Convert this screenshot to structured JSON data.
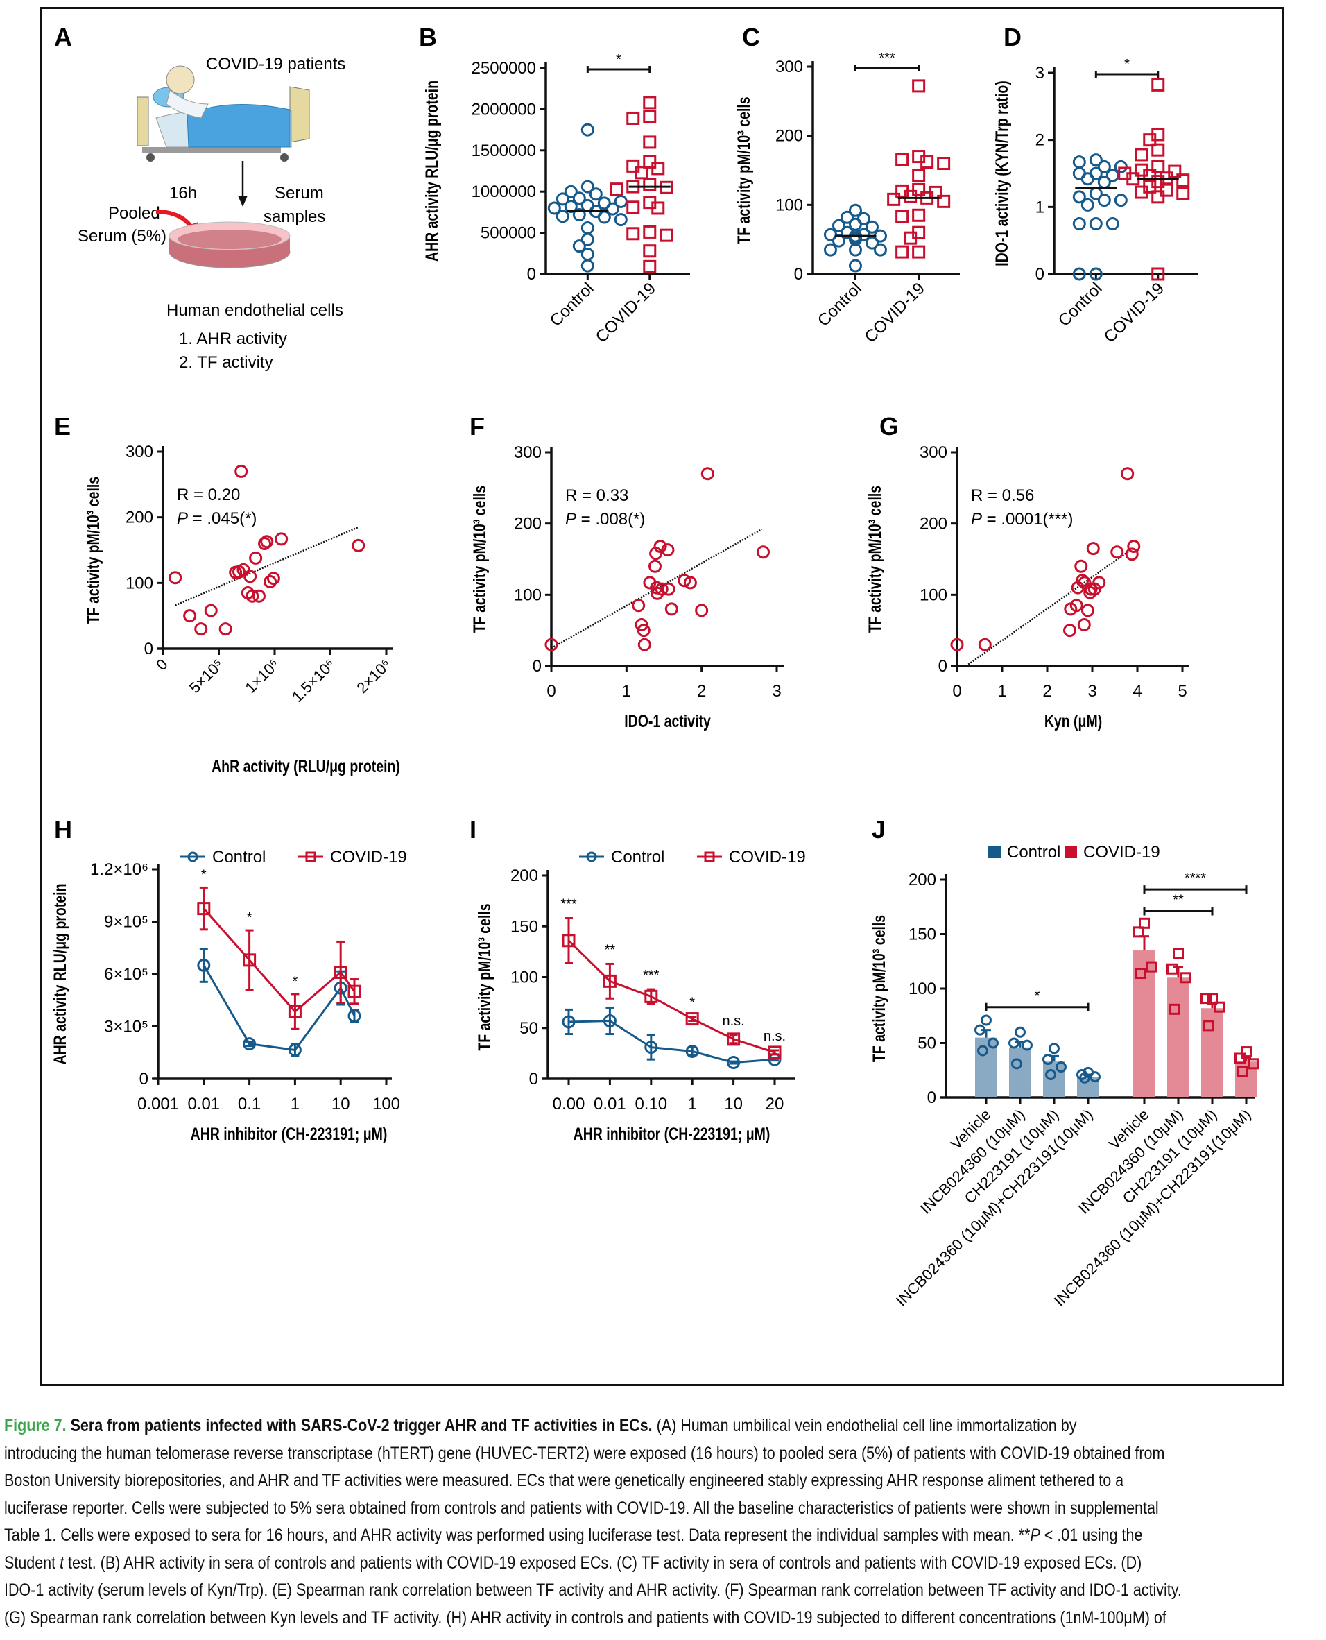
{
  "figure": {
    "label": "Figure 7.",
    "title": "Sera from patients infected with SARS-CoV-2 trigger AHR and TF activities in ECs.",
    "colors": {
      "control": "#165a8c",
      "covid": "#c8102e",
      "control_bar": "#8aa9c3",
      "covid_bar": "#e38a96",
      "caption_label": "#3aa54a"
    }
  },
  "panel_a": {
    "letter": "A",
    "patients_label": "COVID-19 patients",
    "time_label": "16h",
    "serum_label_1": "Serum",
    "serum_label_2": "samples",
    "pooled_label_1": "Pooled",
    "pooled_label_2": "Serum (5%)",
    "cells_label": "Human endothelial cells",
    "readouts": [
      "1. AHR activity",
      "2. TF activity"
    ]
  },
  "chart_data": [
    {
      "panel": "B",
      "type": "scatter",
      "subtype": "dot-plot",
      "ylabel": "AHR activity RLU/μg protein",
      "categories": [
        "Control",
        "COVID-19"
      ],
      "ylim": [
        0,
        2500000
      ],
      "yticks": [
        "0",
        "500000",
        "1000000",
        "1500000",
        "2000000",
        "2500000"
      ],
      "ytick_values": [
        0,
        500000,
        1000000,
        1500000,
        2000000,
        2500000
      ],
      "significance": "*",
      "series": [
        {
          "name": "Control",
          "marker": "circle",
          "mean": 770000,
          "values": [
            1750000,
            1060000,
            1000000,
            970000,
            920000,
            910000,
            860000,
            880000,
            830000,
            820000,
            790000,
            800000,
            760000,
            720000,
            700000,
            690000,
            660000,
            560000,
            420000,
            340000,
            240000,
            100000
          ]
        },
        {
          "name": "COVID-19",
          "marker": "square",
          "mean": 1060000,
          "values": [
            2080000,
            1910000,
            1890000,
            1600000,
            1360000,
            1310000,
            1280000,
            1230000,
            1090000,
            1060000,
            1050000,
            1030000,
            870000,
            810000,
            800000,
            510000,
            490000,
            470000,
            280000,
            90000
          ]
        }
      ]
    },
    {
      "panel": "C",
      "type": "scatter",
      "subtype": "dot-plot",
      "ylabel": "TF activity pM/10³ cells",
      "categories": [
        "Control",
        "COVID-19"
      ],
      "ylim": [
        0,
        300
      ],
      "yticks": [
        "0",
        "100",
        "200",
        "300"
      ],
      "ytick_values": [
        0,
        100,
        200,
        300
      ],
      "significance": "***",
      "series": [
        {
          "name": "Control",
          "marker": "circle",
          "mean": 55,
          "values": [
            92,
            82,
            80,
            72,
            70,
            68,
            60,
            57,
            57,
            55,
            55,
            52,
            50,
            50,
            48,
            45,
            35,
            35,
            35,
            12
          ]
        },
        {
          "name": "COVID-19",
          "marker": "square",
          "mean": 110,
          "values": [
            272,
            170,
            166,
            162,
            160,
            142,
            122,
            120,
            118,
            112,
            110,
            108,
            105,
            85,
            83,
            60,
            52,
            32,
            32
          ]
        }
      ]
    },
    {
      "panel": "D",
      "type": "scatter",
      "subtype": "dot-plot",
      "ylabel": "IDO-1 activity (KYN/Trp ratio)",
      "categories": [
        "Control",
        "COVID-19"
      ],
      "ylim": [
        0,
        3
      ],
      "yticks": [
        "0",
        "1",
        "2",
        "3"
      ],
      "ytick_values": [
        0,
        1,
        2,
        3
      ],
      "significance": "*",
      "series": [
        {
          "name": "Control",
          "marker": "circle",
          "mean": 1.28,
          "values": [
            1.7,
            1.67,
            1.6,
            1.6,
            1.5,
            1.5,
            1.47,
            1.42,
            1.37,
            1.2,
            1.15,
            1.1,
            1.1,
            1.03,
            0.75,
            0.75,
            0.75,
            0.0,
            0.0
          ]
        },
        {
          "name": "COVID-19",
          "marker": "square",
          "mean": 1.42,
          "values": [
            2.82,
            2.08,
            2.0,
            1.85,
            1.78,
            1.6,
            1.55,
            1.53,
            1.5,
            1.47,
            1.43,
            1.42,
            1.4,
            1.38,
            1.3,
            1.25,
            1.22,
            1.2,
            1.15,
            0.0
          ]
        }
      ]
    },
    {
      "panel": "E",
      "type": "scatter",
      "xlabel": "AhR activity (RLU/μg protein)",
      "ylabel": "TF activity pM/10³ cells",
      "xlim": [
        0,
        2000000
      ],
      "ylim": [
        0,
        300
      ],
      "xticks": [
        "0",
        "5×10⁵",
        "1×10⁶",
        "1.5×10⁶",
        "2×10⁶"
      ],
      "xtick_values": [
        0,
        500000,
        1000000,
        1500000,
        2000000
      ],
      "yticks": [
        "0",
        "100",
        "200",
        "300"
      ],
      "ytick_values": [
        0,
        100,
        200,
        300
      ],
      "annotation": {
        "r": "R = 0.20",
        "p_prefix": "P",
        "p": " = .045(*)"
      },
      "trendline": {
        "x": [
          110000,
          1750000
        ],
        "y": [
          66,
          185
        ]
      },
      "points": [
        [
          110000,
          108
        ],
        [
          240000,
          50
        ],
        [
          340000,
          30
        ],
        [
          430000,
          58
        ],
        [
          560000,
          30
        ],
        [
          650000,
          116
        ],
        [
          680000,
          117
        ],
        [
          720000,
          120
        ],
        [
          700000,
          270
        ],
        [
          760000,
          85
        ],
        [
          780000,
          110
        ],
        [
          800000,
          80
        ],
        [
          830000,
          138
        ],
        [
          860000,
          80
        ],
        [
          910000,
          160
        ],
        [
          930000,
          163
        ],
        [
          960000,
          102
        ],
        [
          990000,
          107
        ],
        [
          1060000,
          167
        ],
        [
          1750000,
          157
        ]
      ]
    },
    {
      "panel": "F",
      "type": "scatter",
      "xlabel": "IDO-1 activity",
      "ylabel": "TF activity pM/10³ cells",
      "xlim": [
        0,
        3
      ],
      "ylim": [
        0,
        300
      ],
      "xticks": [
        "0",
        "1",
        "2",
        "3"
      ],
      "xtick_values": [
        0,
        1,
        2,
        3
      ],
      "yticks": [
        "0",
        "100",
        "200",
        "300"
      ],
      "ytick_values": [
        0,
        100,
        200,
        300
      ],
      "annotation": {
        "r": "R = 0.33",
        "p_prefix": "P",
        "p": " = .008(*)"
      },
      "trendline": {
        "x": [
          0,
          2.8
        ],
        "y": [
          25,
          192
        ]
      },
      "points": [
        [
          0,
          30
        ],
        [
          1.16,
          85
        ],
        [
          1.2,
          58
        ],
        [
          1.23,
          50
        ],
        [
          1.24,
          30
        ],
        [
          1.31,
          117
        ],
        [
          1.38,
          140
        ],
        [
          1.39,
          158
        ],
        [
          1.4,
          110
        ],
        [
          1.41,
          102
        ],
        [
          1.45,
          168
        ],
        [
          1.47,
          108
        ],
        [
          1.55,
          163
        ],
        [
          1.56,
          108
        ],
        [
          1.6,
          80
        ],
        [
          1.77,
          120
        ],
        [
          1.85,
          117
        ],
        [
          2.0,
          78
        ],
        [
          2.08,
          270
        ],
        [
          2.82,
          160
        ]
      ]
    },
    {
      "panel": "G",
      "type": "scatter",
      "xlabel": "Kyn (μM)",
      "ylabel": "TF activity pM/10³ cells",
      "xlim": [
        0,
        5
      ],
      "ylim": [
        0,
        300
      ],
      "xticks": [
        "0",
        "1",
        "2",
        "3",
        "4",
        "5"
      ],
      "xtick_values": [
        0,
        1,
        2,
        3,
        4,
        5
      ],
      "yticks": [
        "0",
        "100",
        "200",
        "300"
      ],
      "ytick_values": [
        0,
        100,
        200,
        300
      ],
      "annotation": {
        "r": "R = 0.56",
        "p_prefix": "P",
        "p": " = .0001(***)"
      },
      "trendline": {
        "x": [
          0.2,
          3.9
        ],
        "y": [
          0,
          165
        ]
      },
      "points": [
        [
          0,
          30
        ],
        [
          0.62,
          30
        ],
        [
          2.5,
          50
        ],
        [
          2.52,
          80
        ],
        [
          2.65,
          85
        ],
        [
          2.68,
          110
        ],
        [
          2.75,
          140
        ],
        [
          2.78,
          120
        ],
        [
          2.82,
          58
        ],
        [
          2.83,
          117
        ],
        [
          2.9,
          78
        ],
        [
          2.95,
          103
        ],
        [
          2.97,
          108
        ],
        [
          3.02,
          165
        ],
        [
          3.05,
          108
        ],
        [
          3.15,
          117
        ],
        [
          3.55,
          160
        ],
        [
          3.78,
          270
        ],
        [
          3.88,
          157
        ],
        [
          3.92,
          168
        ]
      ]
    },
    {
      "panel": "H",
      "type": "line",
      "xscale": "log",
      "xlabel": "AHR inhibitor (CH-223191; μM)",
      "ylabel": "AHR activity RLU/μg protein",
      "xlim": [
        0.001,
        100
      ],
      "ylim": [
        0,
        1200000
      ],
      "xticks": [
        "0.001",
        "0.01",
        "0.1",
        "1",
        "10",
        "100"
      ],
      "xtick_values": [
        0.001,
        0.01,
        0.1,
        1,
        10,
        100
      ],
      "yticks": [
        "0",
        "3×10⁵",
        "6×10⁵",
        "9×10⁵",
        "1.2×10⁶"
      ],
      "ytick_values": [
        0,
        300000,
        600000,
        900000,
        1200000
      ],
      "legend": [
        "Control",
        "COVID-19"
      ],
      "legend_position": "top",
      "x": [
        0.01,
        0.1,
        1,
        10,
        20
      ],
      "significance": [
        "*",
        "*",
        "*",
        "",
        ""
      ],
      "series": [
        {
          "name": "Control",
          "marker": "circle",
          "values": [
            650000,
            200000,
            165000,
            520000,
            360000
          ],
          "errors": [
            95000,
            12000,
            35000,
            95000,
            35000
          ]
        },
        {
          "name": "COVID-19",
          "marker": "square",
          "values": [
            975000,
            680000,
            385000,
            610000,
            500000
          ],
          "errors": [
            120000,
            170000,
            100000,
            175000,
            70000
          ]
        }
      ]
    },
    {
      "panel": "I",
      "type": "line",
      "xscale": "categorical",
      "xlabel": "AHR inhibitor (CH-223191; μM)",
      "ylabel": "TF activity pM/10³ cells",
      "ylim": [
        0,
        200
      ],
      "categories": [
        "0.00",
        "0.01",
        "0.10",
        "1",
        "10",
        "20"
      ],
      "yticks": [
        "0",
        "50",
        "100",
        "150",
        "200"
      ],
      "ytick_values": [
        0,
        50,
        100,
        150,
        200
      ],
      "legend": [
        "Control",
        "COVID-19"
      ],
      "legend_position": "top",
      "significance": [
        "***",
        "**",
        "***",
        "*",
        "n.s.",
        "n.s."
      ],
      "series": [
        {
          "name": "Control",
          "marker": "circle",
          "values": [
            56,
            57,
            31,
            27,
            16,
            19
          ],
          "errors": [
            12,
            13,
            12,
            4,
            1,
            1
          ]
        },
        {
          "name": "COVID-19",
          "marker": "square",
          "values": [
            136,
            96,
            81,
            59,
            39,
            26
          ],
          "errors": [
            22,
            17,
            7,
            2,
            4,
            2
          ]
        }
      ]
    },
    {
      "panel": "J",
      "type": "bar",
      "ylabel": "TF activity pM/10³ cells",
      "ylim": [
        0,
        200
      ],
      "yticks": [
        "0",
        "50",
        "100",
        "150",
        "200"
      ],
      "ytick_values": [
        0,
        50,
        100,
        150,
        200
      ],
      "legend": [
        "Control",
        "COVID-19"
      ],
      "legend_position": "top",
      "categories": [
        "Vehicle",
        "INCB024360 (10μM)",
        "CH223191 (10μM)",
        "INCB024360 (10μM)+CH223191(10μM)",
        "Vehicle",
        "INCB024360 (10μM)",
        "CH223191 (10μM)",
        "INCB024360 (10μM)+CH223191(10μM)"
      ],
      "groups": [
        "Control",
        "Control",
        "Control",
        "Control",
        "COVID-19",
        "COVID-19",
        "COVID-19",
        "COVID-19"
      ],
      "values": [
        55,
        46,
        33,
        19,
        135,
        110,
        82,
        33
      ],
      "errors": [
        7,
        5,
        5,
        2,
        13,
        10,
        4,
        3
      ],
      "points": [
        [
          71,
          62,
          50,
          43
        ],
        [
          60,
          50,
          48,
          31
        ],
        [
          45,
          35,
          28,
          21
        ],
        [
          23,
          21,
          19,
          18
        ],
        [
          160,
          152,
          120,
          114
        ],
        [
          132,
          118,
          110,
          81
        ],
        [
          91,
          91,
          83,
          66
        ],
        [
          42,
          36,
          31,
          24
        ]
      ],
      "comparisons": [
        {
          "from": 0,
          "to": 3,
          "label": "*",
          "y": 83
        },
        {
          "from": 4,
          "to": 6,
          "label": "**",
          "y": 171
        },
        {
          "from": 4,
          "to": 7,
          "label": "****",
          "y": 191
        }
      ]
    }
  ],
  "caption": {
    "lines": [
      {
        "segments": [
          {
            "style": "label",
            "text": "Figure 7. "
          },
          {
            "style": "title",
            "text": "Sera from patients infected with SARS-CoV-2 trigger AHR and TF activities in ECs."
          },
          {
            "style": "normal",
            "text": " (A) Human umbilical vein endothelial cell line immortalization by"
          }
        ]
      },
      {
        "segments": [
          {
            "style": "normal",
            "text": "introducing the human telomerase reverse transcriptase (hTERT) gene (HUVEC-TERT2) were exposed (16 hours) to pooled sera (5%) of patients with COVID-19 obtained from"
          }
        ]
      },
      {
        "segments": [
          {
            "style": "normal",
            "text": "Boston University biorepositories, and AHR and TF activities were measured. ECs that were genetically engineered stably expressing AHR response aliment tethered to a"
          }
        ]
      },
      {
        "segments": [
          {
            "style": "normal",
            "text": "luciferase reporter. Cells were subjected to 5% sera obtained from controls and patients with COVID-19. All the baseline characteristics of patients were shown in supplemental"
          }
        ]
      },
      {
        "segments": [
          {
            "style": "normal",
            "text": "Table 1. Cells were exposed to sera for 16 hours, and AHR activity was performed using luciferase test. Data represent the individual samples with mean. **"
          },
          {
            "style": "italic",
            "text": "P"
          },
          {
            "style": "normal",
            "text": " < .01 using the"
          }
        ]
      },
      {
        "segments": [
          {
            "style": "normal",
            "text": "Student "
          },
          {
            "style": "italic",
            "text": "t"
          },
          {
            "style": "normal",
            "text": " test. (B) AHR activity in sera of controls and patients with COVID-19 exposed ECs. (C) TF activity in sera of controls and patients with COVID-19 exposed ECs. (D)"
          }
        ]
      },
      {
        "segments": [
          {
            "style": "normal",
            "text": "IDO-1 activity (serum levels of Kyn/Trp). (E) Spearman rank correlation between TF activity and AHR activity. (F) Spearman rank correlation between TF activity and IDO-1 activity."
          }
        ]
      },
      {
        "segments": [
          {
            "style": "normal",
            "text": "(G) Spearman rank correlation between Kyn levels and TF activity. (H) AHR activity in controls and patients with COVID-19 subjected to different concentrations (1nM-100μM) of"
          }
        ]
      }
    ]
  }
}
